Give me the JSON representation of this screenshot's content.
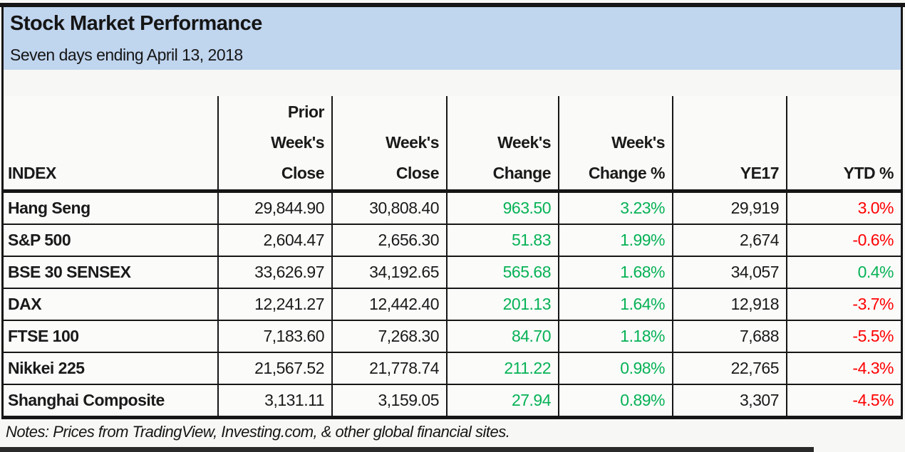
{
  "title_block": {
    "title": "Stock Market Performance",
    "subtitle": "Seven days ending April 13, 2018"
  },
  "table": {
    "index_header": "INDEX",
    "column_headers": {
      "prior_weeks_close": {
        "line1": "Prior",
        "line2": "Week's",
        "line3": "Close"
      },
      "weeks_close": {
        "line1": "Week's",
        "line2": "Close"
      },
      "weeks_change": {
        "line1": "Week's",
        "line2": "Change"
      },
      "weeks_change_pct": {
        "line1": "Week's",
        "line2": "Change %"
      },
      "ye17": "YE17",
      "ytd_pct": "YTD %"
    },
    "rows": [
      {
        "name": "Hang Seng",
        "prior_close": "29,844.90",
        "weeks_close": "30,808.40",
        "change": "963.50",
        "change_color": "green",
        "change_pct": "3.23%",
        "change_pct_color": "green",
        "ye17": "29,919",
        "ytd_pct": "3.0%",
        "ytd_color": "red"
      },
      {
        "name": "S&P 500",
        "prior_close": "2,604.47",
        "weeks_close": "2,656.30",
        "change": "51.83",
        "change_color": "green",
        "change_pct": "1.99%",
        "change_pct_color": "green",
        "ye17": "2,674",
        "ytd_pct": "-0.6%",
        "ytd_color": "red"
      },
      {
        "name": "BSE 30 SENSEX",
        "prior_close": "33,626.97",
        "weeks_close": "34,192.65",
        "change": "565.68",
        "change_color": "green",
        "change_pct": "1.68%",
        "change_pct_color": "green",
        "ye17": "34,057",
        "ytd_pct": "0.4%",
        "ytd_color": "green"
      },
      {
        "name": "DAX",
        "prior_close": "12,241.27",
        "weeks_close": "12,442.40",
        "change": "201.13",
        "change_color": "green",
        "change_pct": "1.64%",
        "change_pct_color": "green",
        "ye17": "12,918",
        "ytd_pct": "-3.7%",
        "ytd_color": "red"
      },
      {
        "name": "FTSE 100",
        "prior_close": "7,183.60",
        "weeks_close": "7,268.30",
        "change": "84.70",
        "change_color": "green",
        "change_pct": "1.18%",
        "change_pct_color": "green",
        "ye17": "7,688",
        "ytd_pct": "-5.5%",
        "ytd_color": "red"
      },
      {
        "name": "Nikkei 225",
        "prior_close": "21,567.52",
        "weeks_close": "21,778.74",
        "change": "211.22",
        "change_color": "green",
        "change_pct": "0.98%",
        "change_pct_color": "green",
        "ye17": "22,765",
        "ytd_pct": "-4.3%",
        "ytd_color": "red"
      },
      {
        "name": "Shanghai Composite",
        "prior_close": "3,131.11",
        "weeks_close": "3,159.05",
        "change": "27.94",
        "change_color": "green",
        "change_pct": "0.89%",
        "change_pct_color": "green",
        "ye17": "3,307",
        "ytd_pct": "-4.5%",
        "ytd_color": "red"
      }
    ]
  },
  "notes": "Notes: Prices from TradingView, Investing.com, & other global financial sites.",
  "colors": {
    "positive": "#07b256",
    "negative": "#ff0000",
    "header_bg": "#c0d5ee"
  },
  "chart_data": {
    "type": "table",
    "title": "Stock Market Performance",
    "subtitle": "Seven days ending April 13, 2018",
    "columns": [
      "INDEX",
      "Prior Week's Close",
      "Week's Close",
      "Week's Change",
      "Week's Change %",
      "YE17",
      "YTD %"
    ],
    "rows": [
      [
        "Hang Seng",
        29844.9,
        30808.4,
        963.5,
        3.23,
        29919,
        3.0
      ],
      [
        "S&P 500",
        2604.47,
        2656.3,
        51.83,
        1.99,
        2674,
        -0.6
      ],
      [
        "BSE 30 SENSEX",
        33626.97,
        34192.65,
        565.68,
        1.68,
        34057,
        0.4
      ],
      [
        "DAX",
        12241.27,
        12442.4,
        201.13,
        1.64,
        12918,
        -3.7
      ],
      [
        "FTSE 100",
        7183.6,
        7268.3,
        84.7,
        1.18,
        7688,
        -5.5
      ],
      [
        "Nikkei 225",
        21567.52,
        21778.74,
        211.22,
        0.98,
        22765,
        -4.3
      ],
      [
        "Shanghai Composite",
        3131.11,
        3159.05,
        27.94,
        0.89,
        3307,
        -4.5
      ]
    ]
  }
}
